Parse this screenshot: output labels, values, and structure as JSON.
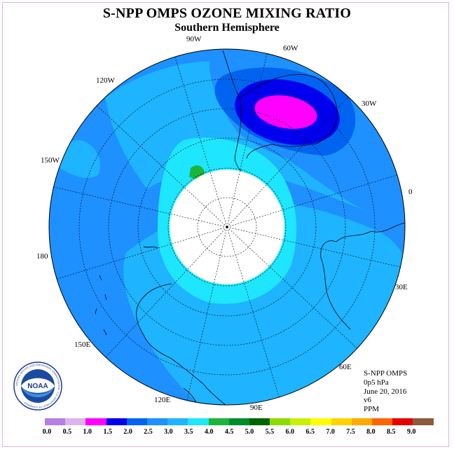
{
  "title": "S-NPP OMPS OZONE MIXING RATIO",
  "subtitle": "Southern Hemisphere",
  "longitude_labels": [
    "90W",
    "60W",
    "30W",
    "0",
    "30E",
    "60E",
    "90E",
    "120E",
    "150E",
    "180",
    "150W",
    "120W"
  ],
  "info": {
    "instrument": "S-NPP OMPS",
    "level": "0p5 hPa",
    "date": "June 20, 2016",
    "version": "v6",
    "units": "PPM"
  },
  "logo": {
    "text": "NOAA",
    "ring_text": "NATIONAL OCEANIC AND ATMOSPHERIC ADMINISTRATION · U.S. DEPARTMENT OF COMMERCE"
  },
  "colorbar": {
    "labels": [
      "0.0",
      "0.5",
      "1.0",
      "1.5",
      "2.0",
      "2.5",
      "3.0",
      "3.5",
      "4.0",
      "4.5",
      "5.0",
      "5.5",
      "6.0",
      "6.5",
      "7.0",
      "7.5",
      "8.0",
      "8.5",
      "9.0"
    ],
    "colors": [
      "#b57ee8",
      "#dcb4ee",
      "#ff00ff",
      "#0000ee",
      "#0064f0",
      "#1e90ff",
      "#1eb4ff",
      "#1ee6ff",
      "#1eb43c",
      "#008c2d",
      "#006400",
      "#8cdc00",
      "#c8f000",
      "#ffff00",
      "#ffd200",
      "#ffaa00",
      "#ff6400",
      "#e60000",
      "#8c5a3c"
    ]
  },
  "map_colors": {
    "range_2_0_2_5": "#0064f0",
    "range_2_5_3_0": "#1e90ff",
    "range_3_0_3_5": "#1eb4ff",
    "range_3_5_4_0": "#1ee6ff",
    "range_4_0_4_5": "#1eb43c",
    "range_1_0_1_5": "#ff00ff",
    "range_1_5_2_0": "#0000ee",
    "no_data": "#ffffff"
  }
}
